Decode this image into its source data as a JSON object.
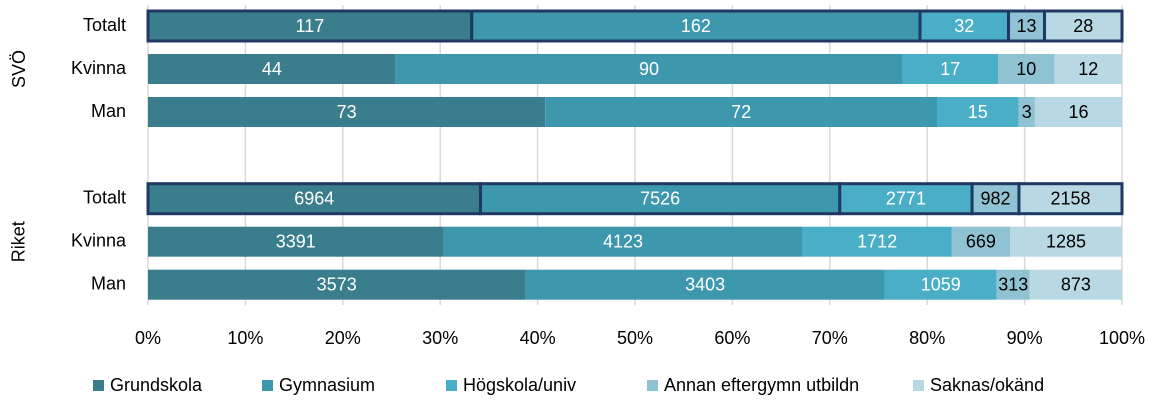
{
  "chart_data": {
    "type": "bar",
    "orientation": "horizontal",
    "stacking": "percent",
    "groups": [
      {
        "name": "SVÖ"
      },
      {
        "name": "Riket"
      }
    ],
    "categories": [
      "Totalt",
      "Kvinna",
      "Man",
      "Totalt",
      "Kvinna",
      "Man"
    ],
    "series": [
      {
        "name": "Grundskola",
        "color": "#3a7d8c",
        "label_color": "#ffffff",
        "values": [
          117,
          44,
          73,
          6964,
          3391,
          3573
        ]
      },
      {
        "name": "Gymnasium",
        "color": "#3d97ad",
        "label_color": "#ffffff",
        "values": [
          162,
          90,
          72,
          7526,
          4123,
          3403
        ]
      },
      {
        "name": "Högskola/univ",
        "color": "#4aaec6",
        "label_color": "#ffffff",
        "values": [
          32,
          17,
          15,
          2771,
          1712,
          1059
        ]
      },
      {
        "name": "Annan eftergymn utbildn",
        "color": "#8fc3d4",
        "label_color": "#000000",
        "values": [
          13,
          10,
          3,
          982,
          669,
          313
        ]
      },
      {
        "name": "Saknas/okänd",
        "color": "#b8d9e3",
        "label_color": "#000000",
        "values": [
          28,
          12,
          16,
          2158,
          1285,
          873
        ]
      }
    ],
    "outlined": [
      true,
      false,
      false,
      true,
      false,
      false
    ],
    "outline_color": "#1f3864",
    "xlim": [
      0,
      100
    ],
    "xticks": [
      {
        "value": 0,
        "label": "0%"
      },
      {
        "value": 10,
        "label": "10%"
      },
      {
        "value": 20,
        "label": "20%"
      },
      {
        "value": 30,
        "label": "30%"
      },
      {
        "value": 40,
        "label": "40%"
      },
      {
        "value": 50,
        "label": "50%"
      },
      {
        "value": 60,
        "label": "60%"
      },
      {
        "value": 70,
        "label": "70%"
      },
      {
        "value": 80,
        "label": "80%"
      },
      {
        "value": 90,
        "label": "90%"
      },
      {
        "value": 100,
        "label": "100%"
      }
    ],
    "grid": true,
    "legend": "bottom"
  }
}
